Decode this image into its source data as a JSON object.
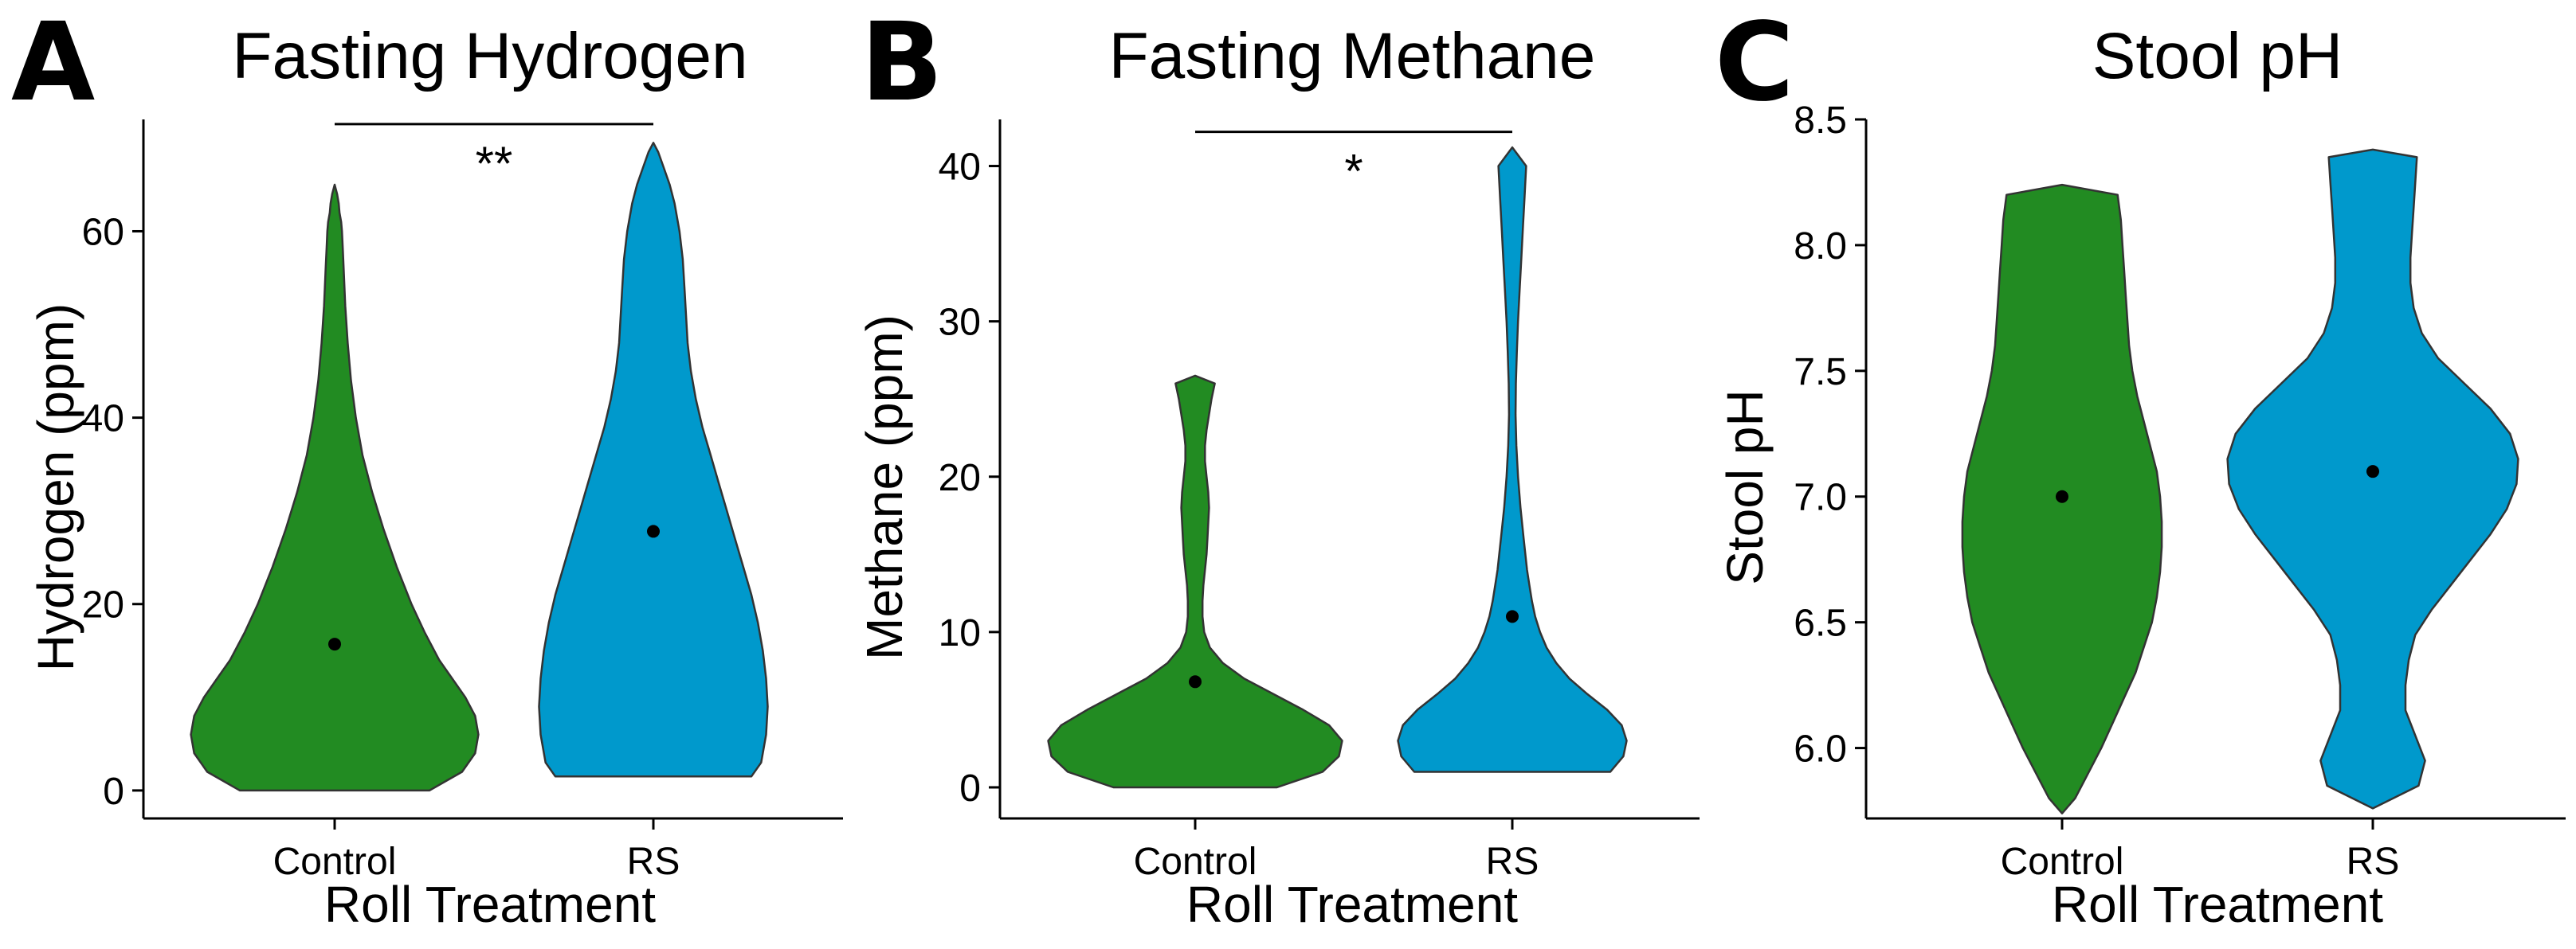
{
  "figure": {
    "background": "#ffffff",
    "violin_outline": "#333333",
    "axis_color": "#000000"
  },
  "chart_data": [
    {
      "type": "violin",
      "panel_label": "A",
      "title": "Fasting Hydrogen",
      "xlabel": "Roll Treatment",
      "ylabel": "Hydrogen (ppm)",
      "categories": [
        "Control",
        "RS"
      ],
      "colors": [
        "#228B22",
        "#0099CC"
      ],
      "ylim": [
        -3,
        72
      ],
      "yticks": [
        0,
        20,
        40,
        60
      ],
      "means": [
        15.7,
        27.8
      ],
      "distributions": [
        {
          "name": "Control",
          "y": [
            0,
            2,
            4,
            6,
            8,
            10,
            12,
            14,
            17,
            20,
            24,
            28,
            32,
            36,
            40,
            44,
            48,
            52,
            56,
            58,
            60,
            61,
            62,
            63,
            64,
            65
          ],
          "w": [
            0.58,
            0.78,
            0.86,
            0.88,
            0.86,
            0.8,
            0.72,
            0.64,
            0.55,
            0.47,
            0.38,
            0.3,
            0.23,
            0.17,
            0.13,
            0.1,
            0.08,
            0.065,
            0.055,
            0.05,
            0.045,
            0.04,
            0.03,
            0.025,
            0.015,
            0.0
          ]
        },
        {
          "name": "RS",
          "y": [
            1.5,
            3,
            6,
            9,
            12,
            15,
            18,
            21,
            24,
            27,
            30,
            33,
            36,
            39,
            42,
            45,
            48,
            51,
            54,
            57,
            60,
            63,
            65,
            67,
            68.5,
            69.5
          ],
          "w": [
            0.6,
            0.66,
            0.69,
            0.7,
            0.69,
            0.67,
            0.64,
            0.6,
            0.55,
            0.5,
            0.45,
            0.4,
            0.35,
            0.3,
            0.26,
            0.23,
            0.21,
            0.2,
            0.19,
            0.18,
            0.16,
            0.13,
            0.1,
            0.06,
            0.03,
            0.0
          ]
        }
      ],
      "significance": {
        "label": "**",
        "from": "Control",
        "to": "RS",
        "y": 71.5
      }
    },
    {
      "type": "violin",
      "panel_label": "B",
      "title": "Fasting Methane",
      "xlabel": "Roll Treatment",
      "ylabel": "Methane (ppm)",
      "categories": [
        "Control",
        "RS"
      ],
      "colors": [
        "#228B22",
        "#0099CC"
      ],
      "ylim": [
        -2,
        43
      ],
      "yticks": [
        0,
        10,
        20,
        30,
        40
      ],
      "means": [
        6.8,
        11.0
      ],
      "distributions": [
        {
          "name": "Control",
          "y": [
            0,
            1,
            2,
            3,
            4,
            5,
            6,
            7,
            8,
            9,
            10,
            11,
            12,
            13,
            14,
            15,
            16,
            17,
            18,
            19,
            20,
            21,
            22,
            23,
            24,
            25,
            26,
            26.5
          ],
          "w": [
            0.5,
            0.78,
            0.88,
            0.9,
            0.82,
            0.66,
            0.48,
            0.3,
            0.17,
            0.09,
            0.055,
            0.045,
            0.045,
            0.05,
            0.06,
            0.07,
            0.075,
            0.08,
            0.085,
            0.08,
            0.07,
            0.06,
            0.06,
            0.07,
            0.085,
            0.1,
            0.12,
            0.0
          ]
        },
        {
          "name": "RS",
          "y": [
            1,
            2,
            3,
            4,
            5,
            6,
            7,
            8,
            9,
            10,
            11,
            12,
            13,
            14,
            15,
            16,
            18,
            20,
            22,
            24,
            26,
            28,
            30,
            32,
            34,
            36,
            38,
            40,
            41.2
          ],
          "w": [
            0.6,
            0.68,
            0.7,
            0.67,
            0.58,
            0.46,
            0.35,
            0.27,
            0.21,
            0.17,
            0.14,
            0.12,
            0.105,
            0.09,
            0.08,
            0.07,
            0.05,
            0.035,
            0.025,
            0.02,
            0.022,
            0.028,
            0.035,
            0.045,
            0.055,
            0.065,
            0.075,
            0.085,
            0.0
          ]
        }
      ],
      "significance": {
        "label": "*",
        "from": "Control",
        "to": "RS",
        "y": 42.2
      }
    },
    {
      "type": "violin",
      "panel_label": "C",
      "title": "Stool pH",
      "xlabel": "Roll Treatment",
      "ylabel": "Stool pH",
      "categories": [
        "Control",
        "RS"
      ],
      "colors": [
        "#228B22",
        "#0099CC"
      ],
      "ylim": [
        5.72,
        8.5
      ],
      "yticks": [
        6.0,
        6.5,
        7.0,
        7.5,
        8.0,
        8.5
      ],
      "ytick_labels": [
        "6.0",
        "6.5",
        "7.0",
        "7.5",
        "8.0",
        "8.5"
      ],
      "means": [
        7.0,
        7.1
      ],
      "distributions": [
        {
          "name": "Control",
          "y": [
            5.74,
            5.8,
            5.9,
            6.0,
            6.1,
            6.2,
            6.3,
            6.4,
            6.5,
            6.6,
            6.7,
            6.8,
            6.9,
            7.0,
            7.1,
            7.2,
            7.3,
            7.4,
            7.5,
            7.6,
            7.7,
            7.8,
            7.9,
            8.0,
            8.1,
            8.2,
            8.24
          ],
          "w": [
            0.0,
            0.08,
            0.16,
            0.24,
            0.31,
            0.38,
            0.45,
            0.5,
            0.55,
            0.58,
            0.6,
            0.61,
            0.61,
            0.6,
            0.58,
            0.54,
            0.5,
            0.46,
            0.43,
            0.41,
            0.4,
            0.39,
            0.38,
            0.37,
            0.36,
            0.34,
            0.0
          ]
        },
        {
          "name": "RS",
          "y": [
            5.76,
            5.85,
            5.95,
            6.05,
            6.15,
            6.25,
            6.35,
            6.45,
            6.55,
            6.65,
            6.75,
            6.85,
            6.95,
            7.05,
            7.15,
            7.25,
            7.35,
            7.45,
            7.55,
            7.65,
            7.75,
            7.85,
            7.95,
            8.05,
            8.15,
            8.25,
            8.35,
            8.38
          ],
          "w": [
            0.0,
            0.28,
            0.32,
            0.26,
            0.2,
            0.2,
            0.22,
            0.26,
            0.36,
            0.48,
            0.6,
            0.72,
            0.82,
            0.88,
            0.89,
            0.84,
            0.72,
            0.56,
            0.4,
            0.3,
            0.25,
            0.23,
            0.23,
            0.24,
            0.25,
            0.26,
            0.27,
            0.0
          ]
        }
      ]
    }
  ]
}
